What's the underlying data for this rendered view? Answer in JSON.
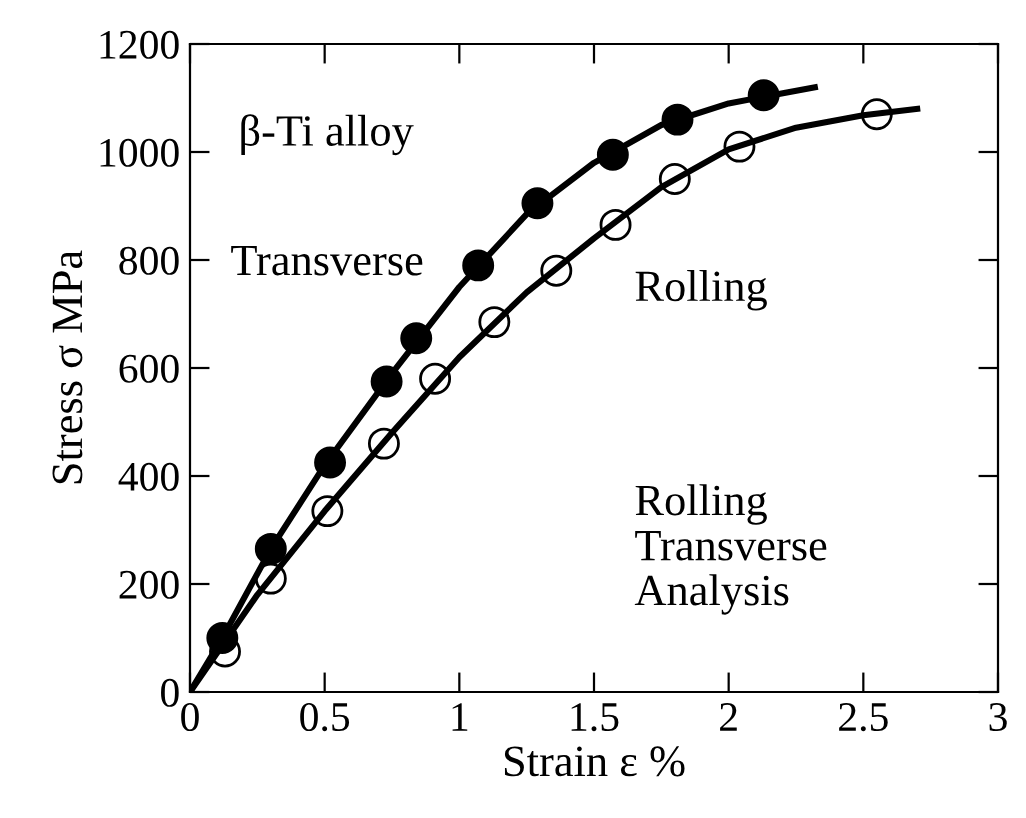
{
  "chart_data": {
    "type": "scatter",
    "xlabel": "Strain ε %",
    "ylabel": "Stress σ MPa",
    "xlim": [
      0,
      3
    ],
    "ylim": [
      0,
      1200
    ],
    "xticks": [
      0,
      0.5,
      1,
      1.5,
      2,
      2.5,
      3
    ],
    "yticks": [
      0,
      200,
      400,
      600,
      800,
      1000,
      1200
    ],
    "grid": false,
    "legend": false,
    "annotations": [
      "β-Ti alloy",
      "Rolling\nTransverse\nAnalysis"
    ],
    "series": [
      {
        "name": "Transverse",
        "color": "#000000",
        "marker": "circle",
        "x": [
          0.12,
          0.3,
          0.52,
          0.73,
          0.84,
          1.07,
          1.29,
          1.57,
          1.81,
          2.13
        ],
        "values": [
          100,
          265,
          425,
          575,
          655,
          790,
          905,
          995,
          1060,
          1105
        ]
      },
      {
        "name": "Rolling",
        "color": "#000000",
        "marker": "circle",
        "x": [
          0.13,
          0.3,
          0.51,
          0.72,
          0.91,
          1.13,
          1.36,
          1.58,
          1.8,
          2.04,
          2.55
        ],
        "values": [
          75,
          210,
          335,
          460,
          580,
          685,
          780,
          865,
          950,
          1010,
          1070
        ]
      },
      {
        "type": "line",
        "color": "#000000",
        "line_style": "solid",
        "x": [
          0,
          0.12,
          0.3,
          0.5,
          0.75,
          1.0,
          1.25,
          1.5,
          1.75,
          2.0,
          2.32
        ],
        "values": [
          0,
          100,
          265,
          420,
          590,
          750,
          885,
          980,
          1050,
          1090,
          1120
        ]
      },
      {
        "type": "line",
        "color": "#000000",
        "line_style": "solid",
        "x": [
          0,
          0.25,
          0.5,
          0.75,
          1.0,
          1.25,
          1.5,
          1.75,
          2.0,
          2.25,
          2.5,
          2.7
        ],
        "values": [
          0,
          180,
          335,
          480,
          620,
          740,
          840,
          935,
          1005,
          1045,
          1068,
          1080
        ]
      }
    ]
  }
}
